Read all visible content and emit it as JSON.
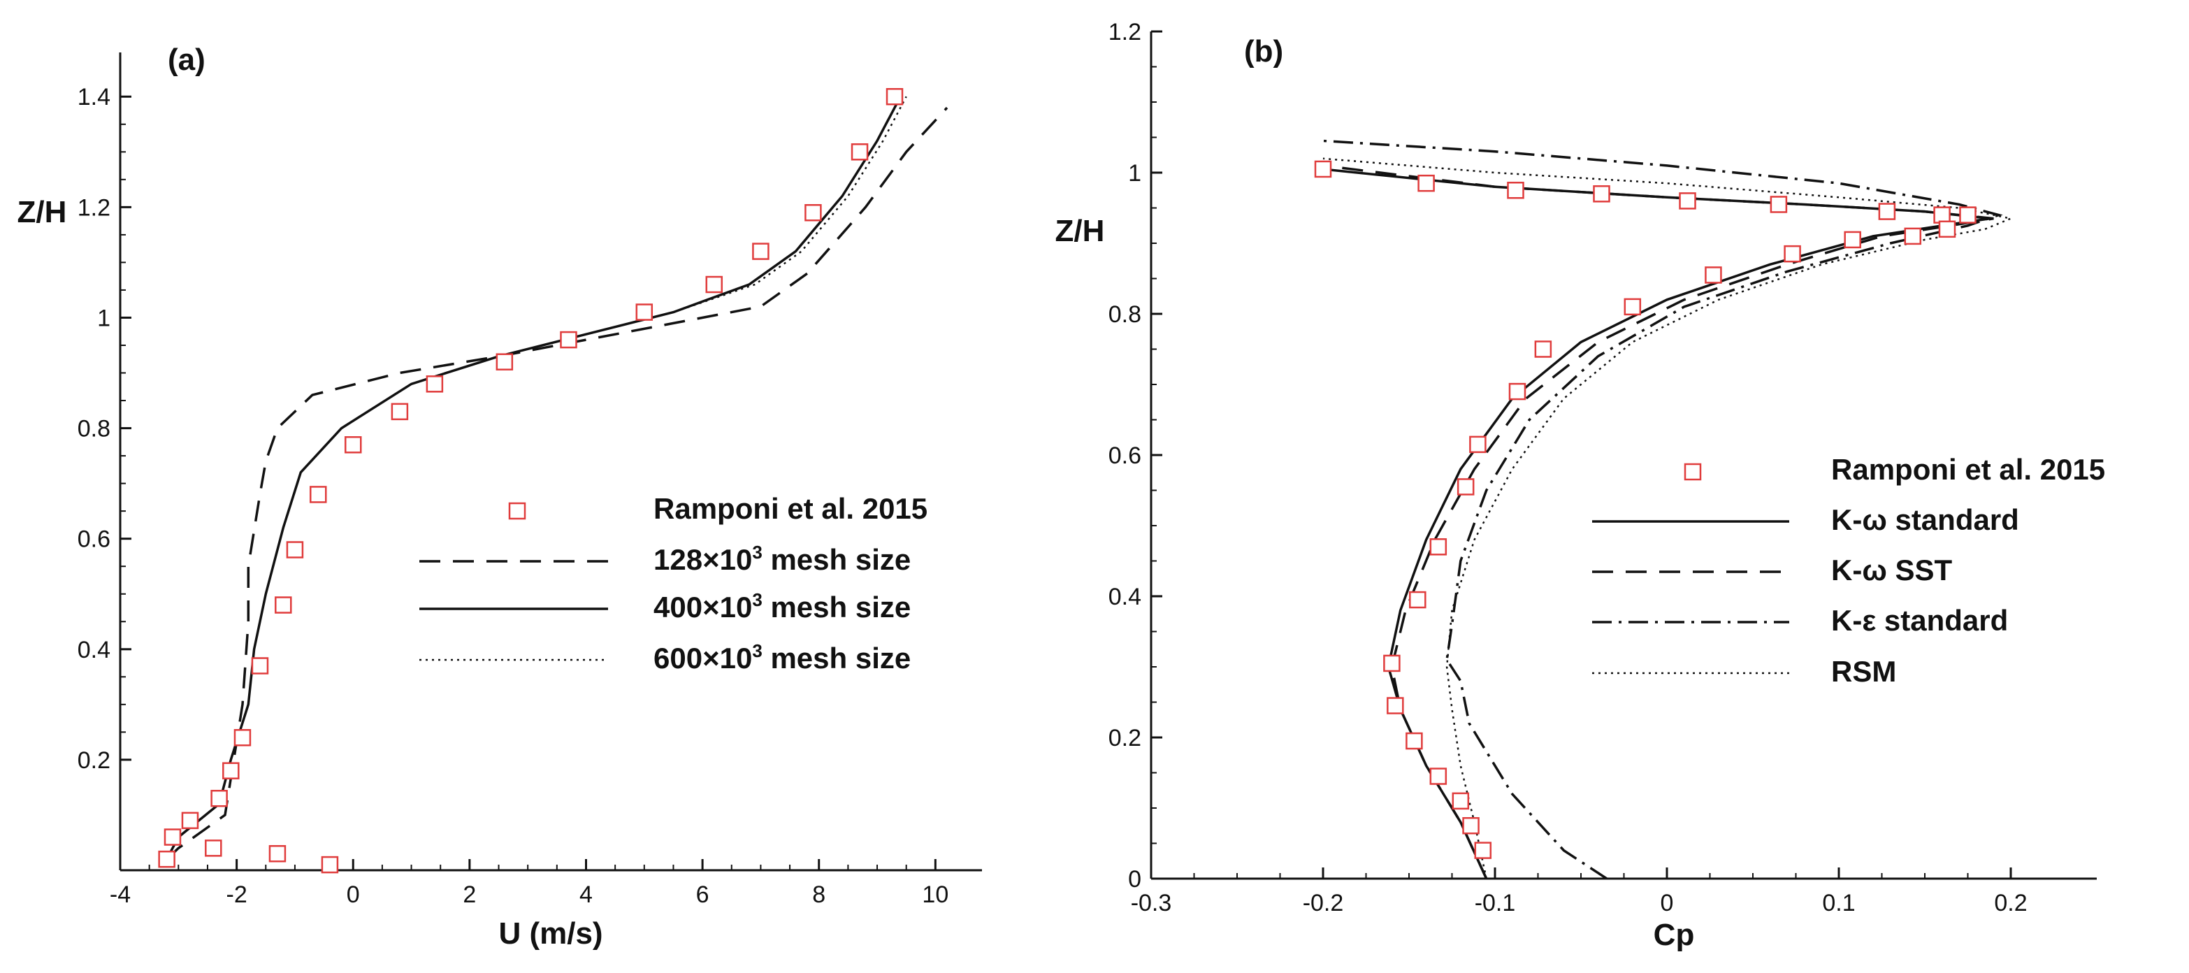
{
  "chart_data": [
    {
      "type": "line",
      "panel_label": "(a)",
      "xlabel": "U (m/s)",
      "ylabel": "Z/H",
      "xlim": [
        -4,
        10.8
      ],
      "ylim": [
        0,
        1.48
      ],
      "xticks": [
        -4,
        -2,
        0,
        2,
        4,
        6,
        8,
        10
      ],
      "yticks": [
        0.2,
        0.4,
        0.6,
        0.8,
        1,
        1.2,
        1.4
      ],
      "legend_position": "center-right",
      "markers": {
        "name": "Ramponi et al. 2015",
        "color": "#e03c3c",
        "points": [
          [
            -3.2,
            0.02
          ],
          [
            -3.1,
            0.06
          ],
          [
            -2.8,
            0.09
          ],
          [
            -2.4,
            0.04
          ],
          [
            -2.3,
            0.13
          ],
          [
            -2.1,
            0.18
          ],
          [
            -1.9,
            0.24
          ],
          [
            -1.6,
            0.37
          ],
          [
            -1.2,
            0.48
          ],
          [
            -1.0,
            0.58
          ],
          [
            -0.6,
            0.68
          ],
          [
            0.0,
            0.77
          ],
          [
            0.8,
            0.83
          ],
          [
            1.4,
            0.88
          ],
          [
            2.6,
            0.92
          ],
          [
            3.7,
            0.96
          ],
          [
            5.0,
            1.01
          ],
          [
            6.2,
            1.06
          ],
          [
            7.0,
            1.12
          ],
          [
            7.9,
            1.19
          ],
          [
            8.7,
            1.3
          ],
          [
            9.3,
            1.4
          ],
          [
            -1.3,
            0.03
          ],
          [
            -0.4,
            0.01
          ]
        ]
      },
      "series": [
        {
          "name": "128×10",
          "sup": "3",
          "name_suffix": " mesh size",
          "style": "dashed",
          "x": [
            -3.2,
            -3.0,
            -2.2,
            -1.9,
            -1.8,
            -1.8,
            -1.6,
            -1.5,
            -1.3,
            -0.7,
            0.8,
            2.5,
            4.0,
            5.5,
            7.0,
            7.8,
            8.8,
            9.5,
            10.2
          ],
          "y": [
            0.02,
            0.04,
            0.1,
            0.3,
            0.45,
            0.55,
            0.68,
            0.74,
            0.8,
            0.86,
            0.9,
            0.93,
            0.96,
            0.99,
            1.02,
            1.08,
            1.2,
            1.3,
            1.38
          ]
        },
        {
          "name": "400×10",
          "sup": "3",
          "name_suffix": " mesh size",
          "style": "solid",
          "x": [
            -3.2,
            -3.0,
            -2.3,
            -2.1,
            -1.8,
            -1.7,
            -1.5,
            -1.2,
            -0.9,
            -0.2,
            1.0,
            2.5,
            4.0,
            5.5,
            6.8,
            7.6,
            8.4,
            9.0,
            9.4
          ],
          "y": [
            0.02,
            0.06,
            0.12,
            0.2,
            0.3,
            0.4,
            0.5,
            0.62,
            0.72,
            0.8,
            0.88,
            0.93,
            0.97,
            1.01,
            1.06,
            1.12,
            1.22,
            1.32,
            1.4
          ]
        },
        {
          "name": "600×10",
          "sup": "3",
          "name_suffix": " mesh size",
          "style": "dotted",
          "x": [
            -3.2,
            -3.0,
            -2.3,
            -2.1,
            -1.8,
            -1.7,
            -1.5,
            -1.2,
            -0.9,
            -0.2,
            1.0,
            2.5,
            4.0,
            5.5,
            6.9,
            7.7,
            8.5,
            9.1,
            9.5
          ],
          "y": [
            0.02,
            0.06,
            0.12,
            0.2,
            0.3,
            0.4,
            0.5,
            0.62,
            0.72,
            0.8,
            0.88,
            0.93,
            0.97,
            1.01,
            1.06,
            1.12,
            1.22,
            1.32,
            1.4
          ]
        }
      ]
    },
    {
      "type": "line",
      "panel_label": "(b)",
      "xlabel": "Cp",
      "ylabel": "Z/H",
      "xlim": [
        -0.3,
        0.25
      ],
      "ylim": [
        0,
        1.2
      ],
      "xticks": [
        -0.3,
        -0.2,
        -0.1,
        0,
        0.1,
        0.2
      ],
      "yticks": [
        0,
        0.2,
        0.4,
        0.6,
        0.8,
        1,
        1.2
      ],
      "legend_position": "center-right",
      "markers": {
        "name": "Ramponi et al. 2015",
        "color": "#e03c3c",
        "points": [
          [
            -0.2,
            1.005
          ],
          [
            -0.14,
            0.985
          ],
          [
            -0.088,
            0.975
          ],
          [
            -0.038,
            0.97
          ],
          [
            0.012,
            0.96
          ],
          [
            0.065,
            0.955
          ],
          [
            0.128,
            0.945
          ],
          [
            0.16,
            0.94
          ],
          [
            0.175,
            0.94
          ],
          [
            0.163,
            0.92
          ],
          [
            0.143,
            0.91
          ],
          [
            0.108,
            0.905
          ],
          [
            0.073,
            0.885
          ],
          [
            0.027,
            0.855
          ],
          [
            -0.02,
            0.81
          ],
          [
            -0.072,
            0.75
          ],
          [
            -0.087,
            0.69
          ],
          [
            -0.11,
            0.615
          ],
          [
            -0.117,
            0.555
          ],
          [
            -0.133,
            0.47
          ],
          [
            -0.145,
            0.395
          ],
          [
            -0.16,
            0.305
          ],
          [
            -0.158,
            0.245
          ],
          [
            -0.147,
            0.195
          ],
          [
            -0.133,
            0.145
          ],
          [
            -0.12,
            0.11
          ],
          [
            -0.114,
            0.075
          ],
          [
            -0.107,
            0.04
          ]
        ]
      },
      "series": [
        {
          "name": "K-ω standard",
          "style": "solid",
          "x": [
            -0.105,
            -0.12,
            -0.14,
            -0.155,
            -0.162,
            -0.155,
            -0.14,
            -0.12,
            -0.09,
            -0.05,
            0.0,
            0.06,
            0.12,
            0.16,
            0.188,
            0.15,
            0.08,
            0.0,
            -0.1,
            -0.2
          ],
          "y": [
            0.0,
            0.08,
            0.16,
            0.24,
            0.3,
            0.38,
            0.48,
            0.58,
            0.68,
            0.76,
            0.82,
            0.87,
            0.91,
            0.925,
            0.935,
            0.945,
            0.955,
            0.965,
            0.98,
            1.005
          ]
        },
        {
          "name": "K-ω SST",
          "style": "dashed",
          "x": [
            -0.105,
            -0.12,
            -0.14,
            -0.155,
            -0.16,
            -0.152,
            -0.135,
            -0.112,
            -0.082,
            -0.04,
            0.01,
            0.07,
            0.125,
            0.165,
            0.19,
            0.15,
            0.08,
            0.0,
            -0.1,
            -0.2
          ],
          "y": [
            0.0,
            0.08,
            0.16,
            0.24,
            0.3,
            0.38,
            0.48,
            0.58,
            0.68,
            0.76,
            0.82,
            0.87,
            0.91,
            0.925,
            0.935,
            0.945,
            0.955,
            0.965,
            0.98,
            1.01
          ]
        },
        {
          "name": "K-ε standard",
          "style": "dashdot",
          "x": [
            -0.035,
            -0.06,
            -0.09,
            -0.115,
            -0.12,
            -0.128,
            -0.125,
            -0.12,
            -0.105,
            -0.08,
            -0.04,
            0.01,
            0.07,
            0.13,
            0.175,
            0.193,
            0.17,
            0.1,
            0.0,
            -0.1,
            -0.2
          ],
          "y": [
            0.0,
            0.04,
            0.12,
            0.22,
            0.28,
            0.31,
            0.36,
            0.45,
            0.55,
            0.65,
            0.74,
            0.81,
            0.86,
            0.9,
            0.925,
            0.94,
            0.955,
            0.985,
            1.01,
            1.03,
            1.045
          ]
        },
        {
          "name": "RSM",
          "style": "dotted",
          "x": [
            -0.105,
            -0.112,
            -0.12,
            -0.125,
            -0.128,
            -0.125,
            -0.112,
            -0.09,
            -0.06,
            -0.02,
            0.03,
            0.09,
            0.15,
            0.185,
            0.2,
            0.17,
            0.1,
            0.0,
            -0.1,
            -0.2
          ],
          "y": [
            0.0,
            0.08,
            0.16,
            0.24,
            0.3,
            0.38,
            0.48,
            0.58,
            0.68,
            0.76,
            0.82,
            0.87,
            0.905,
            0.92,
            0.935,
            0.95,
            0.965,
            0.985,
            1.0,
            1.02
          ]
        }
      ]
    }
  ]
}
